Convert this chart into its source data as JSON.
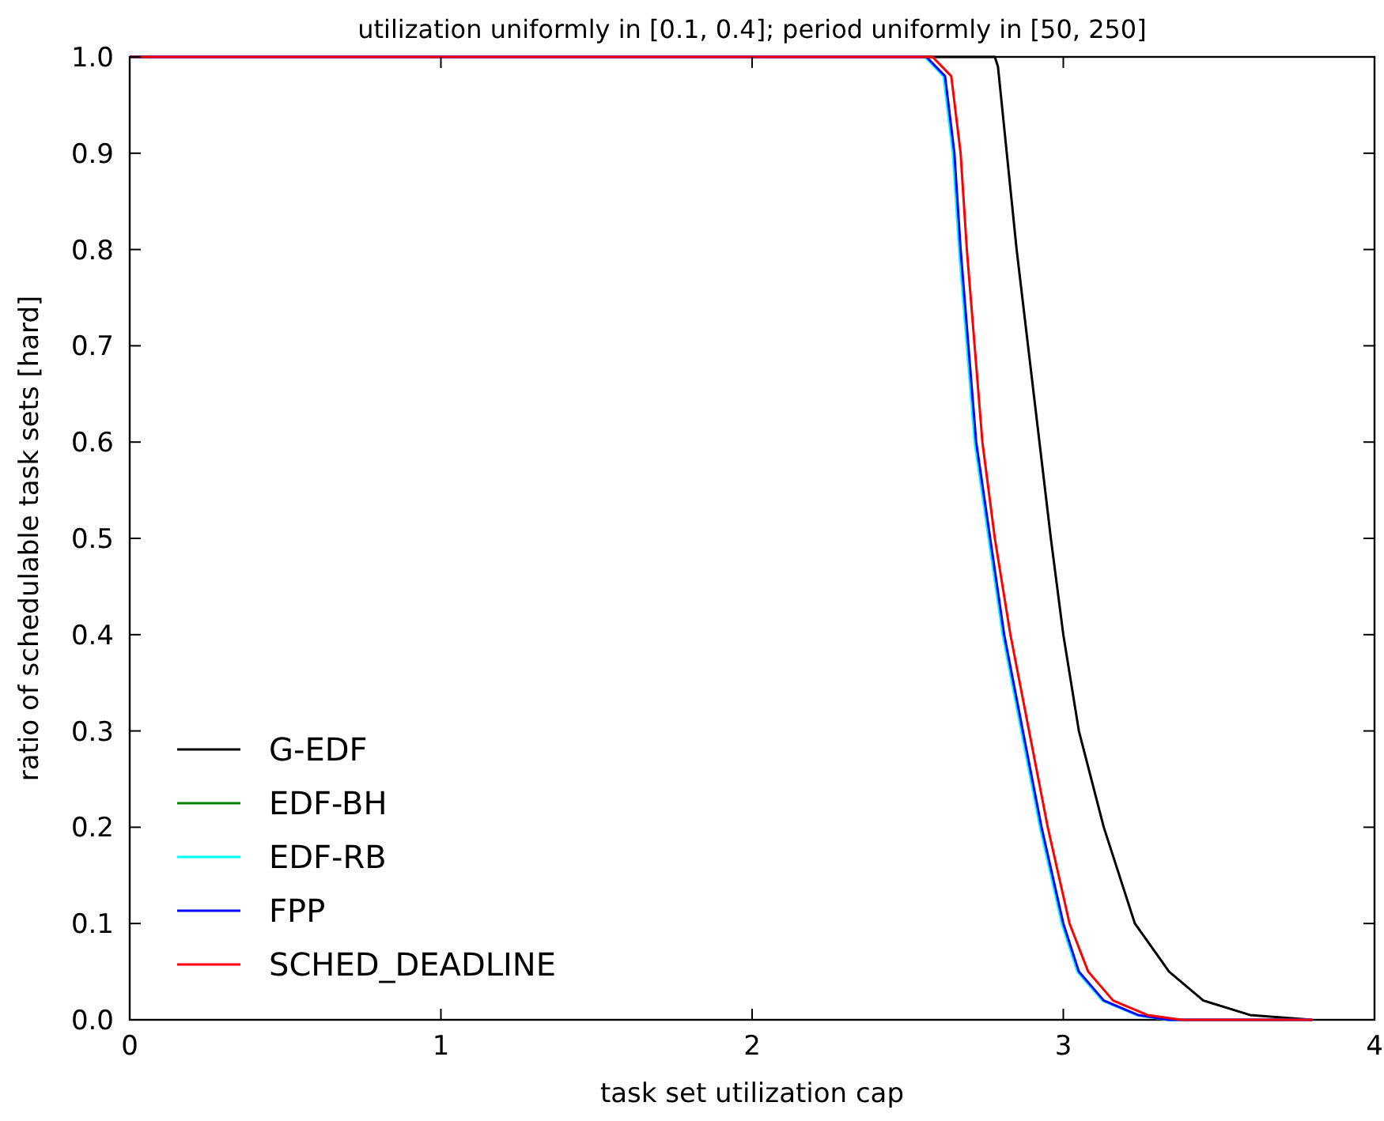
{
  "chart_data": {
    "type": "line",
    "title": "utilization uniformly in [0.1, 0.4]; period uniformly in [50, 250]",
    "xlabel": "task set utilization cap",
    "ylabel": "ratio of schedulable task sets [hard]",
    "xlim": [
      0,
      4
    ],
    "ylim": [
      0,
      1
    ],
    "xticks": [
      0,
      1,
      2,
      3,
      4
    ],
    "yticks": [
      {
        "value": 0,
        "label": "0.0"
      },
      {
        "value": 0.1,
        "label": "0.1"
      },
      {
        "value": 0.2,
        "label": "0.2"
      },
      {
        "value": 0.3,
        "label": "0.3"
      },
      {
        "value": 0.4,
        "label": "0.4"
      },
      {
        "value": 0.5,
        "label": "0.5"
      },
      {
        "value": 0.6,
        "label": "0.6"
      },
      {
        "value": 0.7,
        "label": "0.7"
      },
      {
        "value": 0.8,
        "label": "0.8"
      },
      {
        "value": 0.9,
        "label": "0.9"
      },
      {
        "value": 1,
        "label": "1.0"
      }
    ],
    "grid": false,
    "legend": "bottom left",
    "marker": "none",
    "line_style": "solid",
    "series": [
      {
        "name": "G-EDF",
        "color": "#000000",
        "x": [
          0,
          2.78,
          2.79,
          2.85,
          2.96,
          3.0,
          3.05,
          3.13,
          3.23,
          3.34,
          3.45,
          3.6,
          3.8
        ],
        "values": [
          1,
          1,
          0.99,
          0.8,
          0.5,
          0.4,
          0.3,
          0.2,
          0.1,
          0.05,
          0.02,
          0.005,
          0
        ]
      },
      {
        "name": "EDF-BH",
        "color": "#008000"
      },
      {
        "name": "EDF-RB",
        "color": "#00ffff",
        "x": [
          0,
          2.555,
          2.615,
          2.645,
          2.665,
          2.715,
          2.76,
          2.805,
          2.865,
          2.925,
          2.995,
          3.045,
          3.125,
          3.235,
          3.335,
          3.8
        ],
        "values": [
          1,
          1,
          0.98,
          0.9,
          0.8,
          0.6,
          0.5,
          0.4,
          0.3,
          0.2,
          0.1,
          0.05,
          0.02,
          0.005,
          0,
          0
        ]
      },
      {
        "name": "FPP",
        "color": "#0000ff",
        "x": [
          0,
          2.56,
          2.62,
          2.65,
          2.67,
          2.72,
          2.765,
          2.81,
          2.87,
          2.93,
          3.0,
          3.05,
          3.13,
          3.24,
          3.34,
          3.8
        ],
        "values": [
          1,
          1,
          0.98,
          0.9,
          0.8,
          0.6,
          0.5,
          0.4,
          0.3,
          0.2,
          0.1,
          0.05,
          0.02,
          0.005,
          0,
          0
        ]
      },
      {
        "name": "SCHED_DEADLINE",
        "color": "#ff0000",
        "x": [
          0,
          2.58,
          2.64,
          2.67,
          2.69,
          2.74,
          2.78,
          2.83,
          2.89,
          2.95,
          3.02,
          3.08,
          3.16,
          3.27,
          3.38,
          3.8
        ],
        "values": [
          1,
          1,
          0.98,
          0.9,
          0.8,
          0.6,
          0.5,
          0.4,
          0.3,
          0.2,
          0.1,
          0.05,
          0.02,
          0.005,
          0,
          0
        ]
      }
    ]
  }
}
